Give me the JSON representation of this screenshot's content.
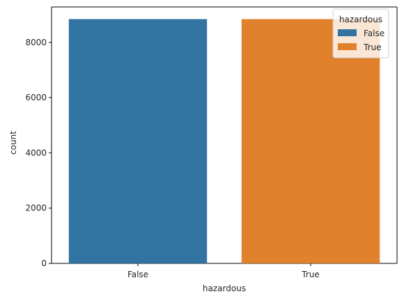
{
  "chart_data": {
    "type": "bar",
    "categories": [
      "False",
      "True"
    ],
    "values": [
      8840,
      8840
    ],
    "xlabel": "hazardous",
    "ylabel": "count",
    "ylim": [
      0,
      9280
    ],
    "yticks": [
      0,
      2000,
      4000,
      6000,
      8000
    ],
    "grid": false,
    "legend": {
      "title": "hazardous",
      "placement": "top-right",
      "entries": [
        {
          "label": "False",
          "color": "#3274a1"
        },
        {
          "label": "True",
          "color": "#e1812c"
        }
      ]
    },
    "colors": [
      "#3274a1",
      "#e1812c"
    ]
  }
}
